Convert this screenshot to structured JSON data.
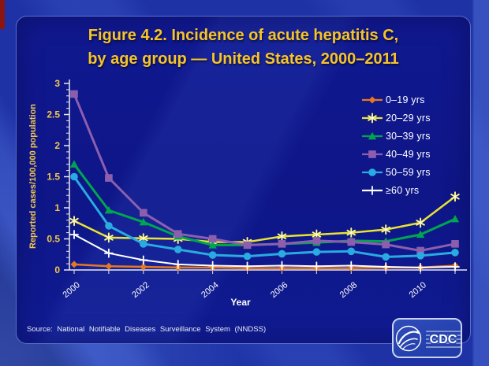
{
  "title": {
    "line1": "Figure 4.2. Incidence of acute hepatitis C,",
    "line2": "by age group — United States, 2000–2011"
  },
  "source": "Source: National Notifiable Diseases Surveillance System (NNDSS)",
  "logo": {
    "cdc_text": "CDC"
  },
  "colors": {
    "background": "#1e32a6",
    "panel": "#0e1688",
    "title_text": "#f6c428",
    "axis": "#e8e8e8",
    "tick_label_y": "#f2c84b",
    "tick_label_x": "#ffffff",
    "legend_text": "#ffffff",
    "source_text": "#e9edf8",
    "logo_border": "#c8d4ee"
  },
  "chart_data": {
    "type": "line",
    "title": "",
    "xlabel": "Year",
    "ylabel": "Reported cases/100,000 population",
    "x": [
      2000,
      2001,
      2002,
      2003,
      2004,
      2005,
      2006,
      2007,
      2008,
      2009,
      2010,
      2011
    ],
    "x_tick_labels": [
      "2000",
      "2002",
      "2004",
      "2006",
      "2008",
      "2010"
    ],
    "ylim": [
      0,
      3
    ],
    "y_ticks": [
      0,
      0.5,
      1,
      1.5,
      2,
      2.5,
      3
    ],
    "y_minor_step": 0.1,
    "grid": false,
    "legend_position": "right",
    "series": [
      {
        "name": "0–19 yrs",
        "color": "#e87722",
        "marker": "diamond",
        "line_width": 2.5,
        "values": [
          0.09,
          0.06,
          0.05,
          0.04,
          0.04,
          0.03,
          0.03,
          0.03,
          0.03,
          0.04,
          0.04,
          0.07
        ]
      },
      {
        "name": "20–29 yrs",
        "color": "#e8e432",
        "marker": "star",
        "line_width": 2.5,
        "values": [
          0.79,
          0.52,
          0.51,
          0.5,
          0.45,
          0.45,
          0.54,
          0.57,
          0.6,
          0.65,
          0.76,
          1.18
        ]
      },
      {
        "name": "30–39 yrs",
        "color": "#00a550",
        "marker": "triangle",
        "line_width": 3,
        "values": [
          1.7,
          0.96,
          0.77,
          0.54,
          0.4,
          0.4,
          0.42,
          0.44,
          0.47,
          0.46,
          0.57,
          0.82
        ]
      },
      {
        "name": "40–49 yrs",
        "color": "#8c5fae",
        "marker": "square",
        "line_width": 3,
        "values": [
          2.83,
          1.48,
          0.92,
          0.58,
          0.5,
          0.4,
          0.42,
          0.47,
          0.45,
          0.41,
          0.31,
          0.42
        ]
      },
      {
        "name": "50–59 yrs",
        "color": "#29abe2",
        "marker": "circle",
        "line_width": 3,
        "values": [
          1.5,
          0.71,
          0.42,
          0.33,
          0.24,
          0.22,
          0.26,
          0.29,
          0.3,
          0.21,
          0.23,
          0.28
        ]
      },
      {
        "name": "≥60 yrs",
        "color": "#ffffff",
        "marker": "plus",
        "line_width": 2,
        "values": [
          0.57,
          0.27,
          0.16,
          0.09,
          0.07,
          0.06,
          0.07,
          0.06,
          0.07,
          0.05,
          0.04,
          0.05
        ]
      }
    ]
  }
}
